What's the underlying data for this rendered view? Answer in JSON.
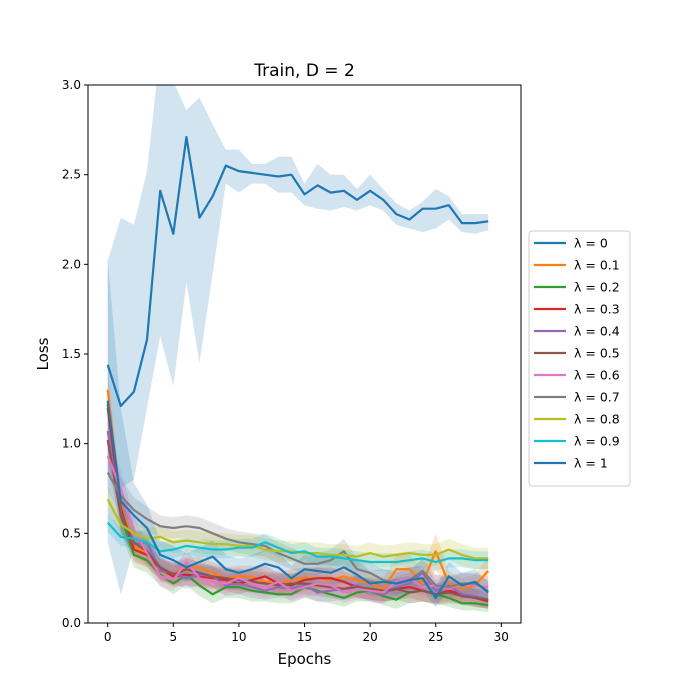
{
  "chart_data": {
    "type": "line",
    "title": "Train, D = 2",
    "xlabel": "Epochs",
    "ylabel": "Loss",
    "xlim": [
      -1.5,
      31.5
    ],
    "ylim": [
      0,
      3.0
    ],
    "xticks": [
      "0",
      "5",
      "10",
      "15",
      "20",
      "25",
      "30"
    ],
    "yticks": [
      "0.0",
      "0.5",
      "1.0",
      "1.5",
      "2.0",
      "2.5",
      "3.0"
    ],
    "legend_position": "right-outside",
    "grid": false,
    "x": [
      0,
      1,
      2,
      3,
      4,
      5,
      6,
      7,
      8,
      9,
      10,
      11,
      12,
      13,
      14,
      15,
      16,
      17,
      18,
      19,
      20,
      21,
      22,
      23,
      24,
      25,
      26,
      27,
      28,
      29
    ],
    "series": [
      {
        "name": "λ = 0",
        "color": "#1f77b4",
        "values": [
          1.44,
          1.21,
          1.29,
          1.58,
          2.41,
          2.17,
          2.71,
          2.26,
          2.38,
          2.55,
          2.52,
          2.51,
          2.5,
          2.49,
          2.5,
          2.39,
          2.44,
          2.4,
          2.41,
          2.36,
          2.41,
          2.36,
          2.28,
          2.25,
          2.31,
          2.31,
          2.33,
          2.23,
          2.23,
          2.24
        ],
        "band_lower": [
          0.85,
          0.75,
          0.8,
          1.2,
          1.6,
          1.32,
          1.9,
          1.45,
          1.95,
          2.45,
          2.4,
          2.45,
          2.45,
          2.4,
          2.4,
          2.33,
          2.31,
          2.3,
          2.32,
          2.3,
          2.33,
          2.3,
          2.22,
          2.2,
          2.18,
          2.2,
          2.25,
          2.18,
          2.17,
          2.19
        ],
        "band_upper": [
          2.02,
          2.26,
          2.22,
          2.52,
          3.2,
          3.02,
          2.86,
          2.93,
          2.78,
          2.64,
          2.64,
          2.56,
          2.56,
          2.6,
          2.6,
          2.45,
          2.56,
          2.5,
          2.5,
          2.42,
          2.5,
          2.42,
          2.34,
          2.3,
          2.35,
          2.42,
          2.38,
          2.28,
          2.28,
          2.28
        ]
      },
      {
        "name": "λ = 0.1",
        "color": "#ff7f0e",
        "values": [
          1.3,
          0.65,
          0.43,
          0.39,
          0.3,
          0.28,
          0.31,
          0.31,
          0.28,
          0.25,
          0.26,
          0.26,
          0.23,
          0.22,
          0.24,
          0.25,
          0.25,
          0.24,
          0.26,
          0.24,
          0.22,
          0.19,
          0.3,
          0.3,
          0.22,
          0.4,
          0.22,
          0.19,
          0.21,
          0.29
        ],
        "band_lower": [
          1.2,
          0.55,
          0.36,
          0.32,
          0.24,
          0.22,
          0.25,
          0.25,
          0.22,
          0.19,
          0.2,
          0.2,
          0.17,
          0.16,
          0.18,
          0.19,
          0.19,
          0.18,
          0.2,
          0.18,
          0.16,
          0.13,
          0.22,
          0.22,
          0.15,
          0.3,
          0.15,
          0.13,
          0.15,
          0.21
        ],
        "band_upper": [
          1.4,
          0.75,
          0.5,
          0.46,
          0.36,
          0.34,
          0.37,
          0.37,
          0.34,
          0.31,
          0.32,
          0.32,
          0.29,
          0.28,
          0.3,
          0.31,
          0.31,
          0.3,
          0.32,
          0.3,
          0.28,
          0.25,
          0.38,
          0.38,
          0.29,
          0.5,
          0.29,
          0.25,
          0.27,
          0.37
        ]
      },
      {
        "name": "λ = 0.2",
        "color": "#2ca02c",
        "values": [
          1.22,
          0.6,
          0.38,
          0.35,
          0.27,
          0.22,
          0.27,
          0.21,
          0.16,
          0.2,
          0.2,
          0.18,
          0.17,
          0.16,
          0.16,
          0.2,
          0.18,
          0.16,
          0.14,
          0.17,
          0.18,
          0.15,
          0.13,
          0.17,
          0.18,
          0.16,
          0.14,
          0.11,
          0.11,
          0.1
        ],
        "band_lower": [
          1.12,
          0.5,
          0.31,
          0.28,
          0.21,
          0.16,
          0.21,
          0.15,
          0.11,
          0.14,
          0.14,
          0.12,
          0.12,
          0.11,
          0.11,
          0.14,
          0.12,
          0.11,
          0.09,
          0.12,
          0.12,
          0.1,
          0.08,
          0.11,
          0.12,
          0.11,
          0.09,
          0.07,
          0.07,
          0.06
        ],
        "band_upper": [
          1.32,
          0.7,
          0.45,
          0.42,
          0.33,
          0.28,
          0.33,
          0.27,
          0.21,
          0.26,
          0.26,
          0.24,
          0.22,
          0.21,
          0.21,
          0.26,
          0.24,
          0.21,
          0.19,
          0.22,
          0.24,
          0.2,
          0.18,
          0.23,
          0.24,
          0.21,
          0.19,
          0.15,
          0.15,
          0.14
        ]
      },
      {
        "name": "λ = 0.3",
        "color": "#d62728",
        "values": [
          1.2,
          0.64,
          0.41,
          0.38,
          0.3,
          0.26,
          0.27,
          0.26,
          0.25,
          0.24,
          0.22,
          0.24,
          0.26,
          0.22,
          0.21,
          0.24,
          0.25,
          0.25,
          0.23,
          0.2,
          0.18,
          0.17,
          0.19,
          0.2,
          0.18,
          0.16,
          0.18,
          0.16,
          0.14,
          0.12
        ],
        "band_lower": [
          1.1,
          0.54,
          0.34,
          0.31,
          0.24,
          0.2,
          0.21,
          0.2,
          0.19,
          0.18,
          0.16,
          0.18,
          0.2,
          0.16,
          0.15,
          0.18,
          0.19,
          0.19,
          0.17,
          0.14,
          0.13,
          0.12,
          0.13,
          0.14,
          0.12,
          0.11,
          0.12,
          0.11,
          0.09,
          0.08
        ],
        "band_upper": [
          1.3,
          0.74,
          0.48,
          0.45,
          0.36,
          0.32,
          0.33,
          0.32,
          0.31,
          0.3,
          0.28,
          0.3,
          0.32,
          0.28,
          0.27,
          0.3,
          0.31,
          0.31,
          0.29,
          0.26,
          0.24,
          0.23,
          0.25,
          0.26,
          0.24,
          0.22,
          0.24,
          0.22,
          0.19,
          0.16
        ]
      },
      {
        "name": "λ = 0.4",
        "color": "#9467bd",
        "values": [
          1.07,
          0.61,
          0.44,
          0.45,
          0.29,
          0.28,
          0.25,
          0.27,
          0.26,
          0.21,
          0.22,
          0.2,
          0.18,
          0.2,
          0.19,
          0.21,
          0.17,
          0.18,
          0.19,
          0.21,
          0.18,
          0.16,
          0.2,
          0.22,
          0.28,
          0.18,
          0.21,
          0.16,
          0.15,
          0.13
        ],
        "band_lower": [
          0.97,
          0.51,
          0.37,
          0.38,
          0.23,
          0.22,
          0.19,
          0.21,
          0.2,
          0.15,
          0.16,
          0.14,
          0.13,
          0.14,
          0.13,
          0.15,
          0.12,
          0.12,
          0.13,
          0.15,
          0.12,
          0.11,
          0.14,
          0.16,
          0.2,
          0.12,
          0.15,
          0.11,
          0.1,
          0.08
        ],
        "band_upper": [
          1.17,
          0.71,
          0.51,
          0.52,
          0.35,
          0.34,
          0.31,
          0.33,
          0.32,
          0.27,
          0.28,
          0.26,
          0.23,
          0.26,
          0.25,
          0.27,
          0.22,
          0.24,
          0.25,
          0.27,
          0.24,
          0.21,
          0.26,
          0.28,
          0.36,
          0.24,
          0.27,
          0.21,
          0.2,
          0.18
        ]
      },
      {
        "name": "λ = 0.5",
        "color": "#8c564b",
        "values": [
          1.02,
          0.6,
          0.45,
          0.4,
          0.31,
          0.27,
          0.3,
          0.28,
          0.26,
          0.25,
          0.24,
          0.23,
          0.22,
          0.21,
          0.22,
          0.22,
          0.21,
          0.2,
          0.19,
          0.2,
          0.19,
          0.18,
          0.19,
          0.17,
          0.18,
          0.16,
          0.17,
          0.15,
          0.14,
          0.13
        ],
        "band_lower": [
          0.92,
          0.5,
          0.38,
          0.33,
          0.25,
          0.21,
          0.24,
          0.22,
          0.2,
          0.19,
          0.18,
          0.17,
          0.16,
          0.15,
          0.16,
          0.16,
          0.15,
          0.14,
          0.13,
          0.14,
          0.13,
          0.12,
          0.13,
          0.11,
          0.12,
          0.1,
          0.11,
          0.1,
          0.09,
          0.08
        ],
        "band_upper": [
          1.12,
          0.7,
          0.52,
          0.47,
          0.37,
          0.33,
          0.36,
          0.34,
          0.32,
          0.31,
          0.3,
          0.29,
          0.28,
          0.27,
          0.28,
          0.28,
          0.27,
          0.26,
          0.25,
          0.26,
          0.25,
          0.24,
          0.25,
          0.23,
          0.24,
          0.22,
          0.23,
          0.2,
          0.19,
          0.18
        ]
      },
      {
        "name": "λ = 0.6",
        "color": "#e377c2",
        "values": [
          0.93,
          0.75,
          0.52,
          0.39,
          0.26,
          0.24,
          0.34,
          0.25,
          0.23,
          0.22,
          0.25,
          0.22,
          0.2,
          0.23,
          0.18,
          0.2,
          0.22,
          0.21,
          0.17,
          0.19,
          0.18,
          0.17,
          0.23,
          0.25,
          0.2,
          0.21,
          0.19,
          0.22,
          0.21,
          0.2
        ],
        "band_lower": [
          0.83,
          0.65,
          0.45,
          0.32,
          0.2,
          0.18,
          0.27,
          0.19,
          0.17,
          0.16,
          0.19,
          0.16,
          0.14,
          0.17,
          0.12,
          0.14,
          0.16,
          0.15,
          0.11,
          0.13,
          0.12,
          0.11,
          0.17,
          0.18,
          0.14,
          0.15,
          0.13,
          0.16,
          0.15,
          0.14
        ],
        "band_upper": [
          1.03,
          0.85,
          0.59,
          0.46,
          0.32,
          0.3,
          0.41,
          0.31,
          0.29,
          0.28,
          0.31,
          0.28,
          0.26,
          0.29,
          0.24,
          0.26,
          0.28,
          0.27,
          0.23,
          0.25,
          0.24,
          0.23,
          0.29,
          0.32,
          0.26,
          0.27,
          0.25,
          0.28,
          0.27,
          0.26
        ]
      },
      {
        "name": "λ = 0.7",
        "color": "#7f7f7f",
        "values": [
          0.84,
          0.71,
          0.63,
          0.58,
          0.54,
          0.53,
          0.54,
          0.53,
          0.5,
          0.47,
          0.45,
          0.44,
          0.43,
          0.39,
          0.36,
          0.33,
          0.33,
          0.35,
          0.4,
          0.3,
          0.28,
          0.24,
          0.22,
          0.24,
          0.29,
          0.21,
          0.2,
          0.22,
          0.22,
          0.18
        ],
        "band_lower": [
          0.74,
          0.61,
          0.56,
          0.51,
          0.48,
          0.47,
          0.48,
          0.47,
          0.44,
          0.41,
          0.39,
          0.38,
          0.37,
          0.33,
          0.3,
          0.27,
          0.27,
          0.29,
          0.33,
          0.24,
          0.22,
          0.18,
          0.16,
          0.18,
          0.22,
          0.15,
          0.14,
          0.16,
          0.16,
          0.12
        ],
        "band_upper": [
          0.94,
          0.81,
          0.7,
          0.65,
          0.6,
          0.59,
          0.6,
          0.59,
          0.56,
          0.53,
          0.51,
          0.5,
          0.49,
          0.45,
          0.42,
          0.39,
          0.39,
          0.41,
          0.47,
          0.36,
          0.34,
          0.3,
          0.28,
          0.3,
          0.36,
          0.27,
          0.26,
          0.28,
          0.28,
          0.24
        ]
      },
      {
        "name": "λ = 0.8",
        "color": "#bcbd22",
        "values": [
          0.69,
          0.55,
          0.5,
          0.47,
          0.48,
          0.45,
          0.46,
          0.45,
          0.44,
          0.44,
          0.43,
          0.43,
          0.41,
          0.4,
          0.4,
          0.39,
          0.39,
          0.38,
          0.38,
          0.37,
          0.39,
          0.37,
          0.38,
          0.39,
          0.38,
          0.38,
          0.41,
          0.38,
          0.36,
          0.36
        ],
        "band_lower": [
          0.62,
          0.49,
          0.44,
          0.41,
          0.42,
          0.39,
          0.4,
          0.39,
          0.38,
          0.38,
          0.37,
          0.37,
          0.35,
          0.34,
          0.34,
          0.33,
          0.33,
          0.32,
          0.32,
          0.31,
          0.33,
          0.31,
          0.32,
          0.33,
          0.32,
          0.32,
          0.35,
          0.32,
          0.3,
          0.3
        ],
        "band_upper": [
          0.76,
          0.61,
          0.56,
          0.53,
          0.54,
          0.51,
          0.52,
          0.51,
          0.5,
          0.5,
          0.49,
          0.49,
          0.47,
          0.46,
          0.46,
          0.45,
          0.45,
          0.44,
          0.44,
          0.43,
          0.45,
          0.43,
          0.44,
          0.45,
          0.44,
          0.44,
          0.47,
          0.44,
          0.42,
          0.42
        ]
      },
      {
        "name": "λ = 0.9",
        "color": "#17becf",
        "values": [
          0.56,
          0.48,
          0.47,
          0.45,
          0.4,
          0.41,
          0.43,
          0.42,
          0.41,
          0.41,
          0.42,
          0.42,
          0.45,
          0.42,
          0.39,
          0.4,
          0.37,
          0.37,
          0.36,
          0.35,
          0.34,
          0.34,
          0.34,
          0.35,
          0.36,
          0.34,
          0.36,
          0.36,
          0.35,
          0.35
        ],
        "band_lower": [
          0.51,
          0.43,
          0.42,
          0.4,
          0.35,
          0.36,
          0.38,
          0.37,
          0.36,
          0.36,
          0.37,
          0.37,
          0.4,
          0.37,
          0.34,
          0.35,
          0.32,
          0.32,
          0.31,
          0.3,
          0.29,
          0.29,
          0.29,
          0.3,
          0.31,
          0.29,
          0.31,
          0.31,
          0.3,
          0.3
        ],
        "band_upper": [
          0.61,
          0.53,
          0.52,
          0.5,
          0.45,
          0.46,
          0.48,
          0.47,
          0.46,
          0.46,
          0.47,
          0.47,
          0.5,
          0.47,
          0.44,
          0.45,
          0.42,
          0.42,
          0.41,
          0.4,
          0.39,
          0.39,
          0.39,
          0.4,
          0.41,
          0.39,
          0.41,
          0.41,
          0.4,
          0.4
        ]
      },
      {
        "name": "λ = 1",
        "color": "#1f77b4",
        "values": [
          1.24,
          0.68,
          0.6,
          0.53,
          0.38,
          0.35,
          0.31,
          0.34,
          0.37,
          0.3,
          0.28,
          0.3,
          0.33,
          0.31,
          0.25,
          0.3,
          0.29,
          0.28,
          0.31,
          0.27,
          0.22,
          0.23,
          0.22,
          0.24,
          0.25,
          0.14,
          0.26,
          0.21,
          0.23,
          0.17
        ],
        "band_lower": [
          0.45,
          0.16,
          0.42,
          0.4,
          0.3,
          0.27,
          0.23,
          0.26,
          0.28,
          0.22,
          0.2,
          0.22,
          0.25,
          0.23,
          0.18,
          0.22,
          0.21,
          0.2,
          0.23,
          0.19,
          0.15,
          0.16,
          0.15,
          0.17,
          0.18,
          0.09,
          0.18,
          0.14,
          0.16,
          0.11
        ],
        "band_upper": [
          2.03,
          1.2,
          0.78,
          0.66,
          0.46,
          0.43,
          0.39,
          0.42,
          0.46,
          0.38,
          0.36,
          0.38,
          0.41,
          0.39,
          0.32,
          0.38,
          0.37,
          0.36,
          0.39,
          0.35,
          0.29,
          0.3,
          0.29,
          0.31,
          0.32,
          0.19,
          0.34,
          0.28,
          0.3,
          0.23
        ]
      }
    ]
  }
}
